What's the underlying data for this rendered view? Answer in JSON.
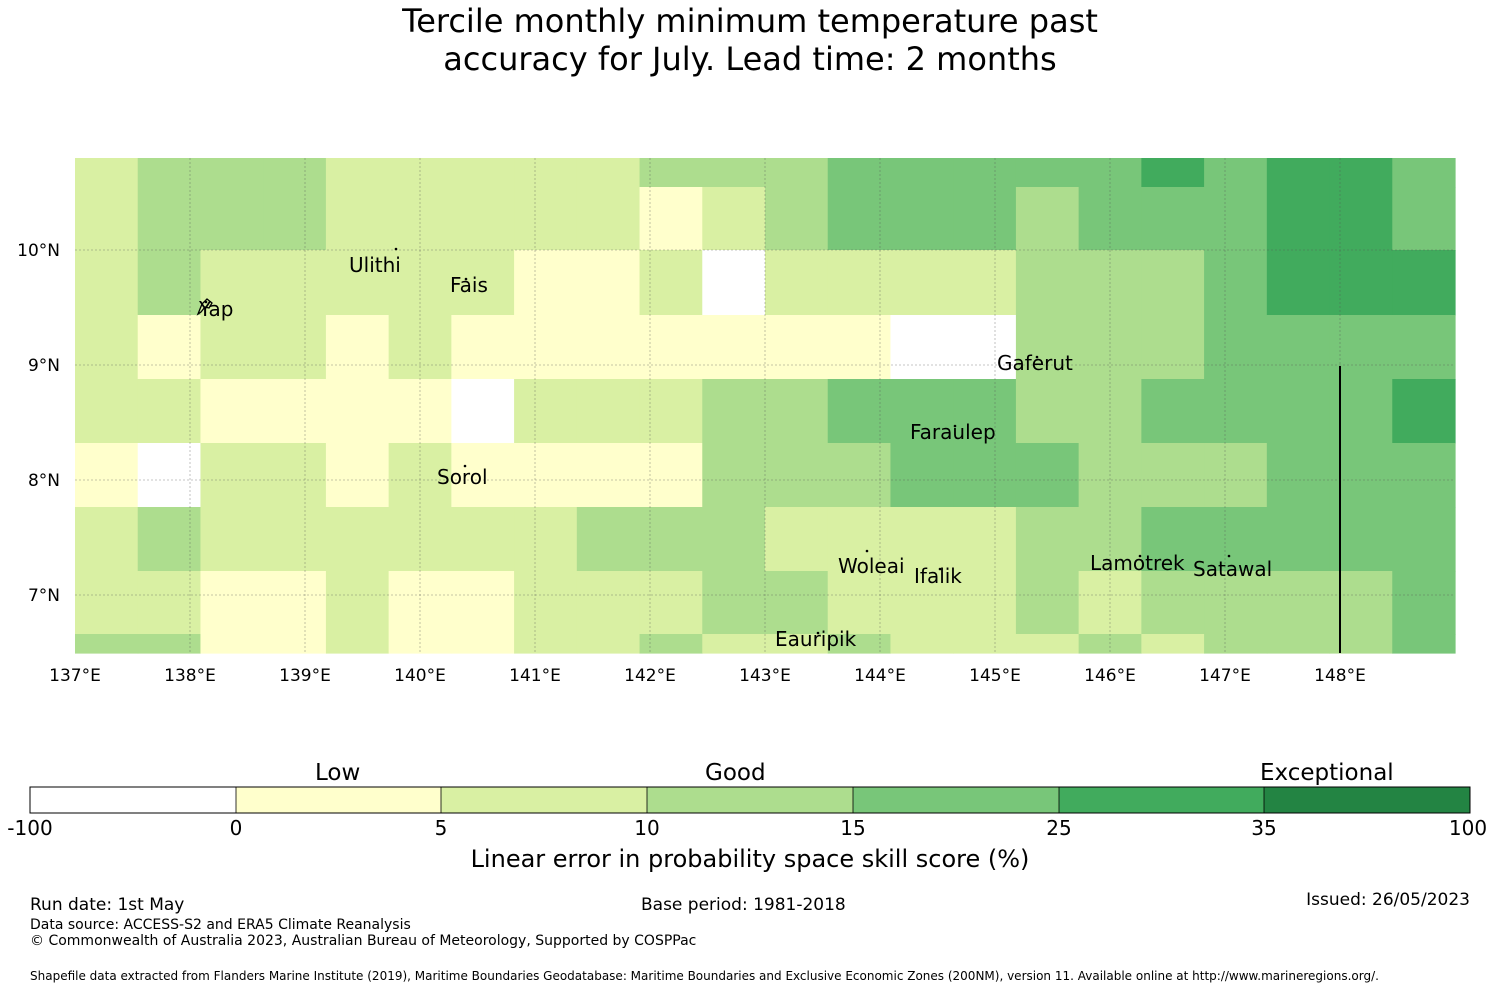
{
  "title": {
    "line1": "Tercile monthly minimum temperature past",
    "line2": "accuracy for July. Lead time: 2 months"
  },
  "map": {
    "lon_ticks": [
      "137°E",
      "138°E",
      "139°E",
      "140°E",
      "141°E",
      "142°E",
      "143°E",
      "144°E",
      "145°E",
      "146°E",
      "147°E",
      "148°E"
    ],
    "lat_ticks": [
      "10°N",
      "9°N",
      "8°N",
      "7°N"
    ],
    "places": [
      {
        "name": "Ulithi"
      },
      {
        "name": "Yap"
      },
      {
        "name": "Fais"
      },
      {
        "name": "Gaferut"
      },
      {
        "name": "Faraulep"
      },
      {
        "name": "Sorol"
      },
      {
        "name": "Woleai"
      },
      {
        "name": "Ifalik"
      },
      {
        "name": "Lamotrek"
      },
      {
        "name": "Satawal"
      },
      {
        "name": "Eauripik"
      }
    ],
    "class_colors": [
      "#ffffff",
      "#ffffcc",
      "#d9f0a3",
      "#addd8e",
      "#78c679",
      "#41ab5d",
      "#238443"
    ],
    "skill_class_grid": [
      [
        2,
        3,
        3,
        3,
        2,
        2,
        2,
        2,
        2,
        3,
        3,
        3,
        4,
        4,
        4,
        4,
        4,
        5,
        4,
        5,
        5,
        4
      ],
      [
        2,
        3,
        3,
        3,
        2,
        2,
        2,
        2,
        2,
        1,
        2,
        3,
        4,
        4,
        4,
        3,
        4,
        4,
        4,
        5,
        5,
        4
      ],
      [
        2,
        3,
        2,
        2,
        2,
        2,
        2,
        1,
        1,
        2,
        0,
        2,
        2,
        2,
        2,
        3,
        3,
        3,
        4,
        5,
        5,
        5
      ],
      [
        2,
        1,
        2,
        2,
        1,
        2,
        1,
        1,
        1,
        1,
        1,
        1,
        1,
        0,
        0,
        3,
        3,
        3,
        4,
        4,
        4,
        4
      ],
      [
        2,
        2,
        1,
        1,
        1,
        1,
        0,
        2,
        2,
        2,
        3,
        3,
        4,
        4,
        4,
        3,
        3,
        4,
        4,
        4,
        4,
        5
      ],
      [
        1,
        0,
        2,
        2,
        1,
        2,
        1,
        1,
        1,
        1,
        3,
        3,
        3,
        4,
        4,
        4,
        3,
        3,
        3,
        4,
        4,
        4
      ],
      [
        2,
        3,
        2,
        2,
        2,
        2,
        2,
        2,
        3,
        3,
        3,
        2,
        2,
        2,
        2,
        3,
        3,
        4,
        4,
        4,
        4,
        4
      ],
      [
        2,
        2,
        1,
        1,
        2,
        1,
        1,
        2,
        2,
        2,
        3,
        3,
        2,
        2,
        2,
        3,
        2,
        3,
        3,
        3,
        3,
        4
      ],
      [
        3,
        3,
        1,
        1,
        2,
        1,
        1,
        2,
        2,
        3,
        2,
        2,
        3,
        2,
        2,
        2,
        3,
        2,
        3,
        3,
        3,
        4
      ]
    ]
  },
  "colorbar": {
    "categories": [
      "Low",
      "Good",
      "Exceptional"
    ],
    "ticks": [
      "-100",
      "0",
      "5",
      "10",
      "15",
      "25",
      "35",
      "100"
    ],
    "colors": [
      "#ffffff",
      "#ffffcc",
      "#d9f0a3",
      "#addd8e",
      "#78c679",
      "#41ab5d",
      "#238443"
    ],
    "label": "Linear error in probability space skill score (%)"
  },
  "footer": {
    "run_date": "Run date: 1st May",
    "base_period": "Base period: 1981-2018",
    "issued": "Issued: 26/05/2023",
    "data_source": "Data source: ACCESS-S2 and ERA5 Climate Reanalysis",
    "copyright": "© Commonwealth of Australia 2023, Australian Bureau of Meteorology, Supported by COSPPac",
    "shapefile": "Shapefile data extracted from Flanders Marine Institute (2019), Maritime Boundaries Geodatabase: Maritime Boundaries and Exclusive Economic Zones (200NM), version 11. Available online at http://www.marineregions.org/."
  }
}
